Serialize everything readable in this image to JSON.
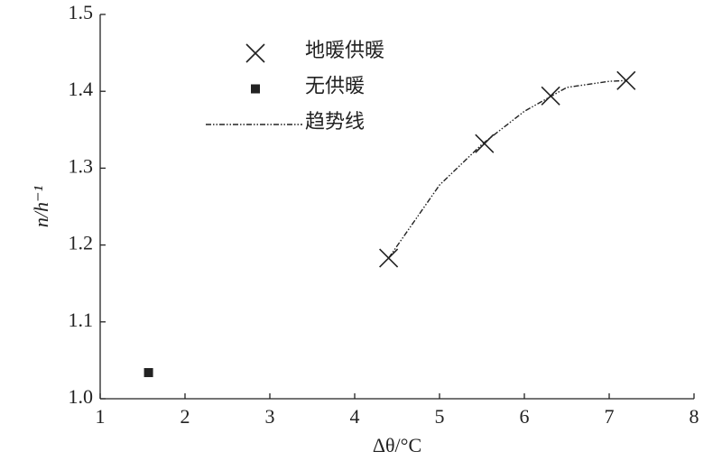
{
  "chart_data": {
    "type": "scatter",
    "xlabel": "Δθ/°C",
    "ylabel": "n/h⁻¹",
    "xlim": [
      1,
      8
    ],
    "xticks": [
      1,
      2,
      3,
      4,
      5,
      6,
      7,
      8
    ],
    "ylim": [
      1.0,
      1.5
    ],
    "yticks": [
      {
        "value": 1.0,
        "label": "1.0"
      },
      1.1,
      1.2,
      1.3,
      1.4,
      1.5
    ],
    "legend": "upper left",
    "series": [
      {
        "name": "地暖供暖",
        "color": "#222222",
        "marker": "x",
        "x": [
          4.4,
          5.53,
          6.31,
          7.2
        ],
        "values": [
          1.183,
          1.332,
          1.394,
          1.414
        ]
      },
      {
        "name": "无供暖",
        "color": "#222222",
        "marker": "square",
        "x": [
          1.57
        ],
        "values": [
          1.034
        ]
      },
      {
        "name": "趋势线",
        "color": "#222222",
        "marker": "line",
        "x": [
          4.4,
          5.0,
          5.5,
          6.0,
          6.5,
          7.0,
          7.2
        ],
        "values": [
          1.183,
          1.278,
          1.331,
          1.374,
          1.405,
          1.413,
          1.414
        ]
      }
    ]
  }
}
